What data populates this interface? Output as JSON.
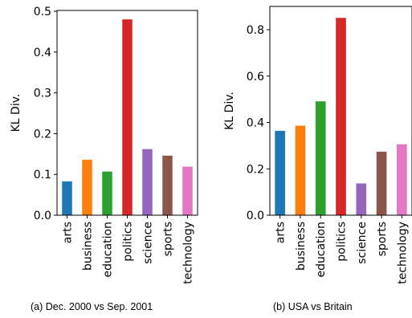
{
  "chart_data": [
    {
      "type": "bar",
      "caption": "(a) Dec. 2000 vs Sep. 2001",
      "ylabel": "KL Div.",
      "categories": [
        "arts",
        "business",
        "education",
        "politics",
        "science",
        "sports",
        "technology"
      ],
      "values": [
        0.083,
        0.136,
        0.107,
        0.48,
        0.162,
        0.146,
        0.119
      ],
      "colors": [
        "#1f77b4",
        "#ff7f0e",
        "#2ca02c",
        "#d62728",
        "#9467bd",
        "#8c564b",
        "#e377c2"
      ],
      "ylim": [
        0,
        0.5
      ],
      "yticks": [
        "0.0",
        "0.1",
        "0.2",
        "0.3",
        "0.4",
        "0.5"
      ]
    },
    {
      "type": "bar",
      "caption": "(b) USA vs Britain",
      "ylabel": "KL Div.",
      "categories": [
        "arts",
        "business",
        "education",
        "politics",
        "science",
        "sports",
        "technology"
      ],
      "values": [
        0.364,
        0.386,
        0.491,
        0.851,
        0.137,
        0.274,
        0.306
      ],
      "colors": [
        "#1f77b4",
        "#ff7f0e",
        "#2ca02c",
        "#d62728",
        "#9467bd",
        "#8c564b",
        "#e377c2"
      ],
      "ylim": [
        0,
        0.8
      ],
      "yticks": [
        "0.0",
        "0.2",
        "0.4",
        "0.6",
        "0.8"
      ]
    }
  ]
}
